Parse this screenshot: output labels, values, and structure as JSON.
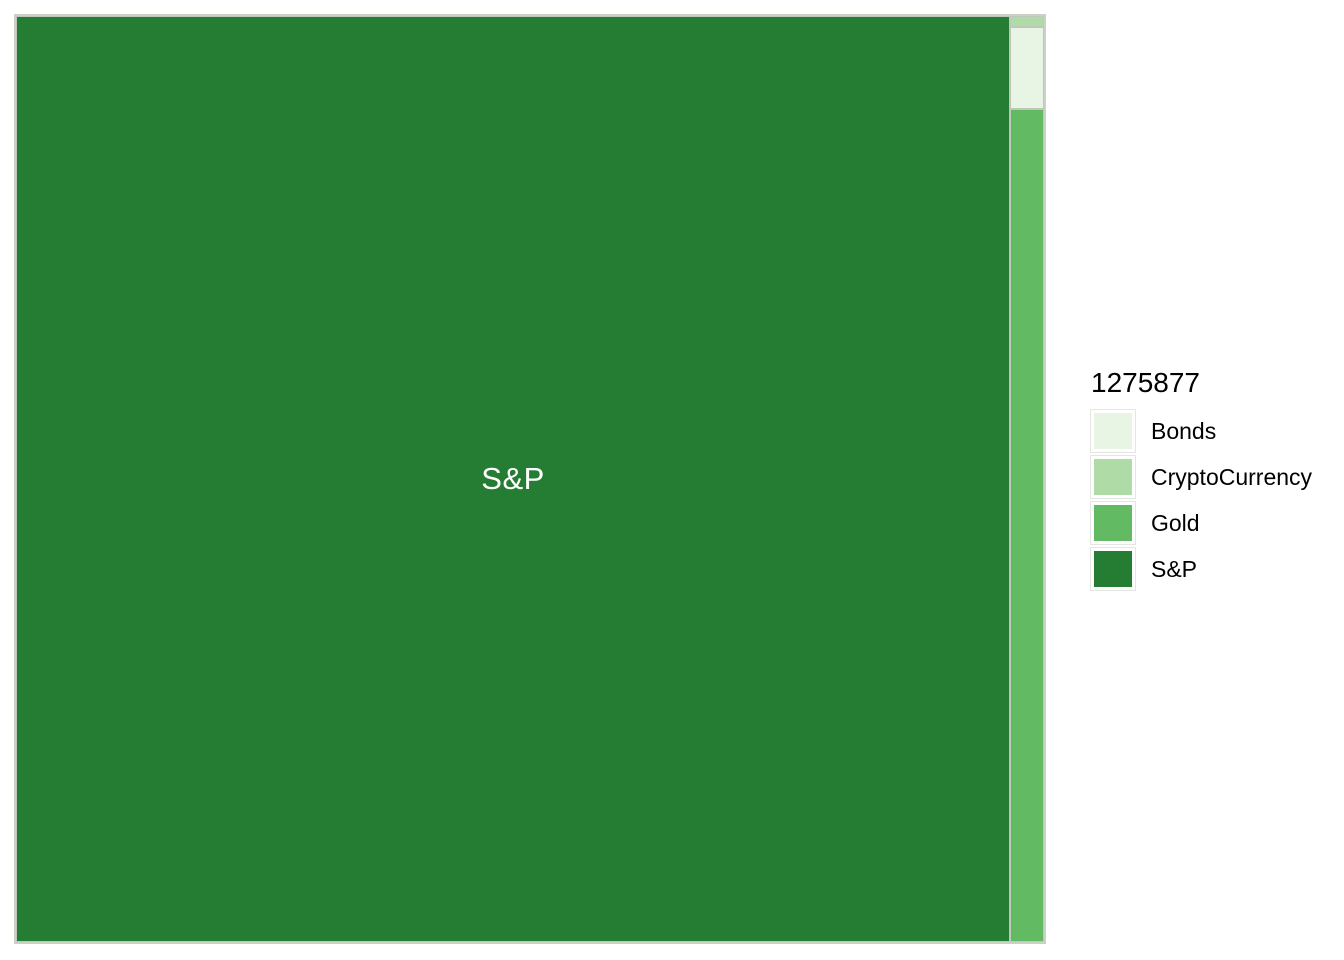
{
  "page": {
    "background": "#ffffff"
  },
  "chart_data": {
    "type": "treemap",
    "title": "1275877",
    "total": 1275877,
    "grid": false,
    "legend": {
      "position": "right",
      "title": "1275877"
    },
    "cell_border_color": "#bfc6ba",
    "in_chart_labels": [
      "S&P"
    ],
    "items": [
      {
        "label": "Bonds",
        "color": "#e9f5e4",
        "estimated_share": 0.0029,
        "estimated_value": 3710,
        "rect": {
          "x": 0.967,
          "y": 0.0118,
          "w": 0.033,
          "h": 0.0882
        }
      },
      {
        "label": "CryptoCurrency",
        "color": "#aedba6",
        "estimated_share": 0.0004,
        "estimated_value": 500,
        "rect": {
          "x": 0.967,
          "y": 0.0,
          "w": 0.033,
          "h": 0.0118
        }
      },
      {
        "label": "Gold",
        "color": "#62bb63",
        "estimated_share": 0.0297,
        "estimated_value": 37830,
        "rect": {
          "x": 0.967,
          "y": 0.1,
          "w": 0.033,
          "h": 0.9
        }
      },
      {
        "label": "S&P",
        "color": "#247d33",
        "label_color": "#ffffff",
        "estimated_share": 0.967,
        "estimated_value": 1233840,
        "rect": {
          "x": 0.0,
          "y": 0.0,
          "w": 0.967,
          "h": 1.0
        }
      }
    ]
  }
}
